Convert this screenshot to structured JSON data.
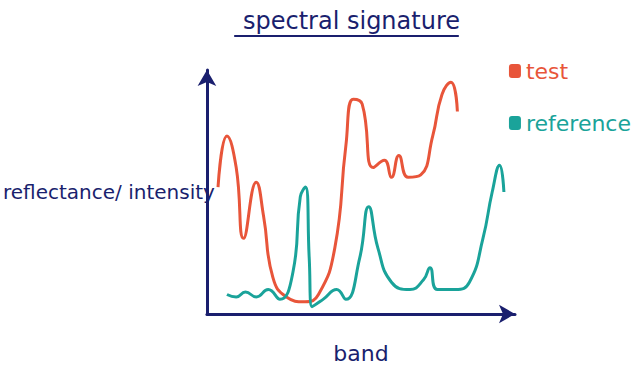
{
  "chart_data": {
    "type": "line",
    "title": "spectral signature",
    "x_label": "band",
    "y_label": "reflectance/ intensity",
    "xlim": [
      0,
      100
    ],
    "ylim": [
      0,
      100
    ],
    "tick_labels": false,
    "grid": false,
    "legend": "top-right",
    "marker": "none",
    "line_style": "solid",
    "series": [
      {
        "name": "test",
        "color": "#e8553a",
        "x": [
          3.6,
          6.5,
          9.5,
          11.9,
          16.0,
          18.4,
          21.4,
          25.8,
          31.8,
          36.2,
          41.5,
          45.1,
          47.5,
          50.4,
          54.0,
          57.6,
          59.9,
          62.3,
          65.3,
          69.4,
          73.3,
          76.3,
          79.2,
          81.3
        ],
        "values": [
          52,
          73,
          60,
          31,
          54,
          40,
          15,
          7,
          5,
          8,
          27,
          69,
          88,
          86,
          60,
          63,
          56,
          65,
          56,
          57,
          73,
          90,
          95,
          83
        ]
      },
      {
        "name": "reference",
        "color": "#1aa39a",
        "x": [
          6.5,
          9.5,
          12.5,
          16.0,
          19.9,
          23.7,
          27.9,
          30.3,
          32.0,
          33.2,
          34.1,
          37.7,
          42.1,
          45.1,
          49.6,
          52.5,
          55.5,
          59.9,
          65.9,
          70.3,
          72.4,
          74.8,
          80.7,
          85.2,
          89.6,
          92.6,
          95.0,
          96.4
        ],
        "values": [
          8,
          7,
          9,
          7,
          10,
          6,
          17,
          48,
          52,
          23,
          3,
          6,
          10,
          6,
          23,
          44,
          27,
          13,
          10,
          14,
          19,
          10,
          10,
          13,
          31,
          50,
          61,
          50
        ]
      }
    ]
  }
}
